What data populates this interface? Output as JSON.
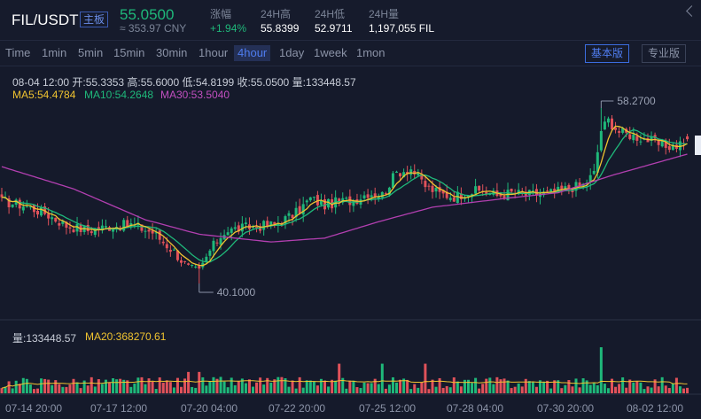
{
  "header": {
    "pair": "FIL/USDT",
    "tag": "主板",
    "price": "55.0500",
    "price_cny": "≈ 353.97 CNY",
    "stats": [
      {
        "label": "涨幅",
        "value": "+1.94%"
      },
      {
        "label": "24H高",
        "value": "55.8399"
      },
      {
        "label": "24H低",
        "value": "52.9711"
      },
      {
        "label": "24H量",
        "value": "1,197,055 FIL"
      }
    ]
  },
  "timeframes": [
    "Time",
    "1min",
    "5min",
    "15min",
    "30min",
    "1hour",
    "4hour",
    "1day",
    "1week",
    "1mon"
  ],
  "active_timeframe": "4hour",
  "modes": [
    "基本版",
    "专业版"
  ],
  "active_mode": "基本版",
  "candle_info": {
    "text": "08-04 12:00   开:55.3353  高:55.6000  低:54.8199  收:55.0500  量:133448.57",
    "ma5": "MA5:54.4784",
    "ma10": "MA10:54.2648",
    "ma30": "MA30:53.5040"
  },
  "volume_info": {
    "vol": "量:133448.57",
    "ma20": "MA20:368270.61"
  },
  "markers": {
    "high": "58.2700",
    "low": "40.1000"
  },
  "x_labels": [
    "07-14 20:00",
    "07-17 12:00",
    "07-20 04:00",
    "07-22 20:00",
    "07-25 12:00",
    "07-28 04:00",
    "07-30 20:00",
    "08-02 12:00"
  ],
  "colors": {
    "up": "#1fb87a",
    "down": "#e0525a",
    "ma5": "#f0c330",
    "ma10": "#1fb87a",
    "ma30": "#b23fb0",
    "bg": "#151a2b"
  },
  "chart_data": {
    "type": "candlestick",
    "x_labels": [
      "07-14 20:00",
      "07-17 12:00",
      "07-20 04:00",
      "07-22 20:00",
      "07-25 12:00",
      "07-28 04:00",
      "07-30 20:00",
      "08-02 12:00"
    ],
    "close_anchors": [
      [
        0,
        48.6
      ],
      [
        6,
        48.2
      ],
      [
        12,
        47.4
      ],
      [
        18,
        46.1
      ],
      [
        24,
        45.6
      ],
      [
        30,
        46.0
      ],
      [
        36,
        46.2
      ],
      [
        42,
        45.4
      ],
      [
        48,
        43.4
      ],
      [
        52,
        41.7
      ],
      [
        55,
        41.3
      ],
      [
        58,
        43.5
      ],
      [
        62,
        45.5
      ],
      [
        66,
        45.8
      ],
      [
        70,
        46.0
      ],
      [
        76,
        46.2
      ],
      [
        82,
        47.4
      ],
      [
        86,
        48.9
      ],
      [
        90,
        48.2
      ],
      [
        94,
        48.6
      ],
      [
        98,
        48.7
      ],
      [
        102,
        49.5
      ],
      [
        106,
        49.3
      ],
      [
        110,
        51.6
      ],
      [
        114,
        52.0
      ],
      [
        118,
        50.2
      ],
      [
        122,
        49.4
      ],
      [
        126,
        49.1
      ],
      [
        130,
        49.6
      ],
      [
        134,
        49.7
      ],
      [
        138,
        49.2
      ],
      [
        142,
        49.5
      ],
      [
        146,
        49.3
      ],
      [
        150,
        49.4
      ],
      [
        154,
        49.5
      ],
      [
        158,
        50.0
      ],
      [
        162,
        50.3
      ],
      [
        165,
        51.5
      ],
      [
        167,
        56.0
      ],
      [
        169,
        57.0
      ],
      [
        172,
        55.8
      ],
      [
        176,
        55.4
      ],
      [
        180,
        55.0
      ],
      [
        184,
        54.3
      ],
      [
        188,
        54.4
      ],
      [
        191,
        55.05
      ]
    ],
    "ma30_anchors": [
      [
        0,
        52.2
      ],
      [
        20,
        49.9
      ],
      [
        40,
        46.7
      ],
      [
        55,
        45.2
      ],
      [
        75,
        44.4
      ],
      [
        90,
        44.8
      ],
      [
        105,
        46.5
      ],
      [
        120,
        48.0
      ],
      [
        140,
        48.9
      ],
      [
        155,
        49.5
      ],
      [
        170,
        51.3
      ],
      [
        191,
        53.5
      ]
    ],
    "high": 58.27,
    "low": 40.1,
    "last_candle": {
      "time": "08-04 12:00",
      "open": 55.3353,
      "high": 55.6,
      "low": 54.8199,
      "close": 55.05,
      "volume": 133448.57
    },
    "ma": {
      "ma5": 54.4784,
      "ma10": 54.2648,
      "ma30": 53.504,
      "vol_ma20": 368270.61
    },
    "series": [
      {
        "name": "MA5",
        "color": "#f0c330"
      },
      {
        "name": "MA10",
        "color": "#1fb87a"
      },
      {
        "name": "MA30",
        "color": "#b23fb0"
      }
    ]
  }
}
